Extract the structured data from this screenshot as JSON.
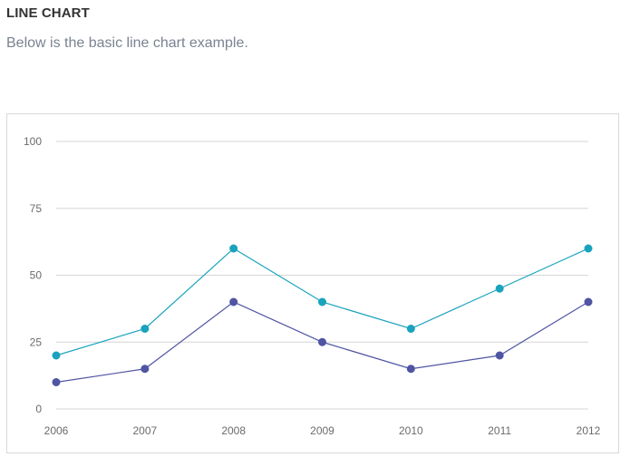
{
  "section": {
    "heading": "LINE CHART",
    "description": "Below is the basic line chart example."
  },
  "chart_data": {
    "type": "line",
    "title": "",
    "xlabel": "",
    "ylabel": "",
    "x": [
      "2006",
      "2007",
      "2008",
      "2009",
      "2010",
      "2011",
      "2012"
    ],
    "ylim": [
      0,
      100
    ],
    "yticks": [
      0,
      25,
      50,
      75,
      100
    ],
    "grid": true,
    "series": [
      {
        "values": [
          20,
          30,
          60,
          40,
          30,
          45,
          60
        ],
        "color": "#1aa3bd"
      },
      {
        "values": [
          10,
          15,
          40,
          25,
          15,
          20,
          40
        ],
        "color": "#4f54a3"
      }
    ]
  }
}
